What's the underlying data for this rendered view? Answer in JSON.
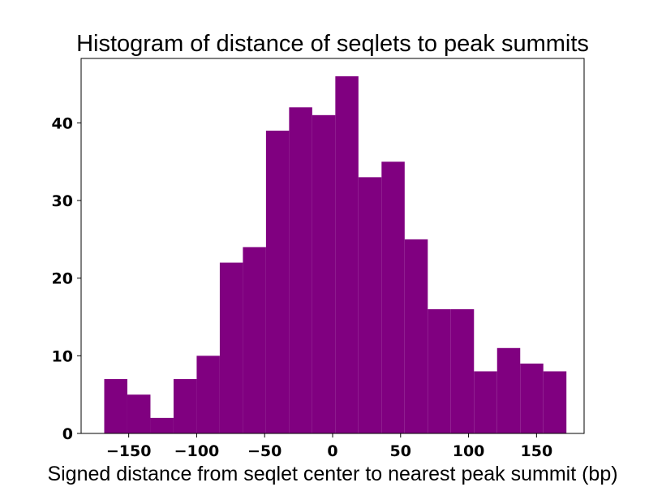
{
  "chart_data": {
    "type": "bar",
    "title": "Histogram of distance of seqlets to peak summits",
    "xlabel": "Signed distance from seqlet center to nearest peak summit (bp)",
    "ylabel": "",
    "bin_edges": [
      -168,
      -151,
      -134,
      -117,
      -100,
      -83,
      -66,
      -49,
      -32,
      -15,
      2,
      19,
      36,
      53,
      70,
      87,
      104,
      121,
      138,
      155,
      172
    ],
    "values": [
      7,
      5,
      2,
      7,
      10,
      22,
      24,
      39,
      42,
      41,
      46,
      33,
      35,
      25,
      16,
      16,
      8,
      11,
      9,
      8
    ],
    "xlim": [
      -185,
      185
    ],
    "ylim": [
      0,
      48.3
    ],
    "xticks": [
      -150,
      -100,
      -50,
      0,
      50,
      100,
      150
    ],
    "xtick_labels": [
      "−150",
      "−100",
      "−50",
      "0",
      "50",
      "100",
      "150"
    ],
    "yticks": [
      0,
      10,
      20,
      30,
      40
    ],
    "ytick_labels": [
      "0",
      "10",
      "20",
      "30",
      "40"
    ],
    "bar_color": "#800080",
    "grid": false,
    "legend": "none"
  }
}
